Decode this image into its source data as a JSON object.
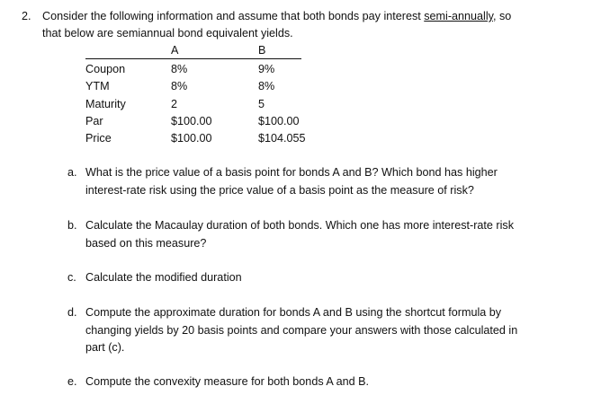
{
  "question": {
    "number": "2.",
    "line1_pre": "Consider the following information and assume that both bonds pay interest ",
    "line1_link": "semi-annually",
    "line1_post": ", so",
    "line2": "that below are semiannual bond equivalent yields."
  },
  "table": {
    "headers": [
      "A",
      "B"
    ],
    "rows": [
      {
        "label": "Coupon",
        "a": "8%",
        "b": "9%"
      },
      {
        "label": "YTM",
        "a": "8%",
        "b": "8%"
      },
      {
        "label": "Maturity",
        "a": "2",
        "b": "5"
      },
      {
        "label": "Par",
        "a": "$100.00",
        "b": "$100.00"
      },
      {
        "label": "Price",
        "a": "$100.00",
        "b": "$104.055"
      }
    ]
  },
  "parts": [
    {
      "marker": "a.",
      "lines": [
        "What is the price value of a basis point for bonds A and B? Which bond has higher",
        "interest-rate risk using the price value of a basis point as the measure of risk?"
      ]
    },
    {
      "marker": "b.",
      "lines": [
        "Calculate the Macaulay duration of both bonds. Which one has more interest-rate risk",
        "based on this measure?"
      ]
    },
    {
      "marker": "c.",
      "lines": [
        "Calculate the modified duration"
      ]
    },
    {
      "marker": "d.",
      "lines": [
        "Compute the approximate duration for bonds A and B using the shortcut formula by",
        "changing yields by 20 basis points and compare your answers with those calculated in",
        "part (c)."
      ]
    },
    {
      "marker": "e.",
      "lines": [
        "Compute the convexity measure for both bonds A and B."
      ]
    }
  ]
}
